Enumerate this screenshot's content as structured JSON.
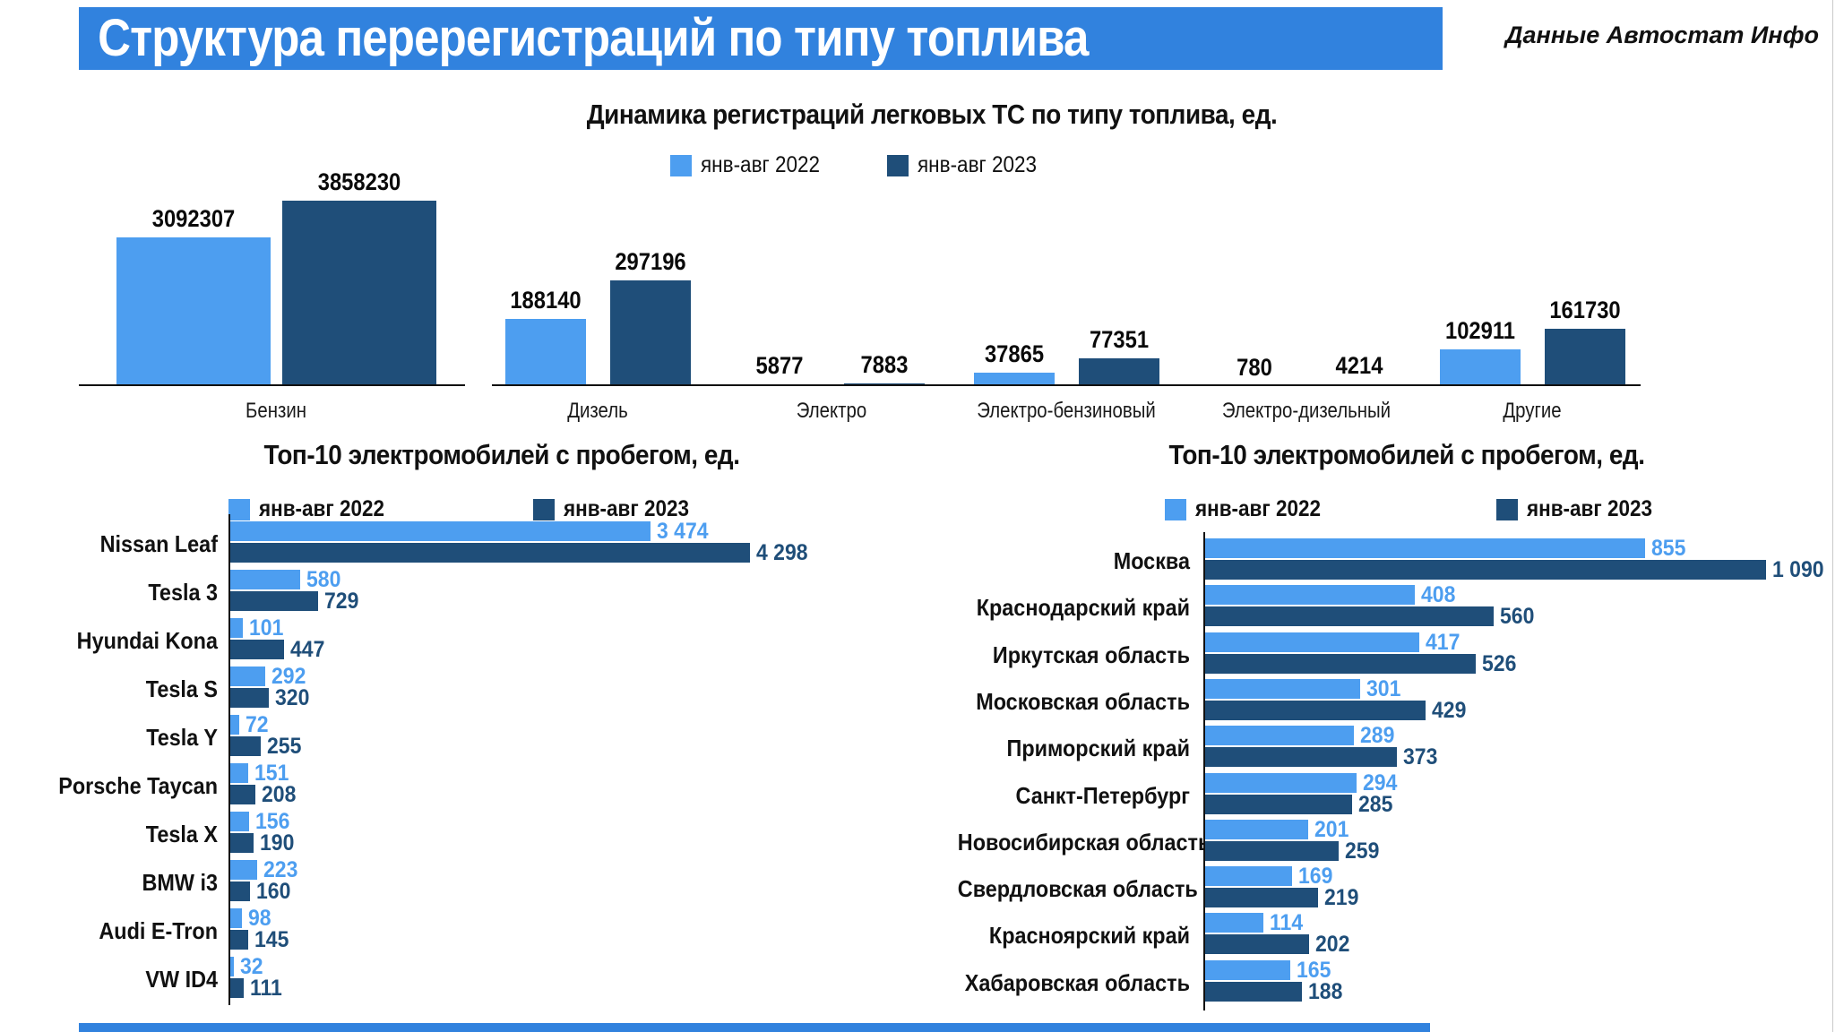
{
  "banner": {
    "title": "Структура перерегистраций по типу топлива",
    "bg_color": "#3182DE"
  },
  "source_note": "Данные Автостат Инфо",
  "colors": {
    "series_2022": "#4D9EF0",
    "series_2023": "#1F4E79",
    "banner_blue": "#3182DE"
  },
  "legend": {
    "label_2022": "янв-авг 2022",
    "label_2023": "янв-авг 2023"
  },
  "chart_data": [
    {
      "type": "bar",
      "orientation": "vertical",
      "title": "Динамика регистраций легковых ТС по типу топлива, ед.",
      "legend_position": "top",
      "grid": false,
      "categories": [
        "Бензин",
        "Дизель",
        "Электро",
        "Электро-бензиновый",
        "Электро-дизельный",
        "Другие"
      ],
      "series": [
        {
          "name": "янв-авг 2022",
          "values": [
            3092307,
            188140,
            5877,
            37865,
            780,
            102911
          ]
        },
        {
          "name": "янв-авг 2023",
          "values": [
            3858230,
            297196,
            7883,
            77351,
            4214,
            161730
          ]
        }
      ],
      "axis_note": "two panels with independent linear scales: Бензин panel, and Дизель–Другие panel; values shown as data labels above bars"
    },
    {
      "type": "bar",
      "orientation": "horizontal",
      "title": "Топ-10 электромобилей с пробегом, ед.",
      "legend_position": "top",
      "grid": false,
      "categories": [
        "Nissan Leaf",
        "Tesla 3",
        "Hyundai Kona",
        "Tesla S",
        "Tesla Y",
        "Porsche Taycan",
        "Tesla X",
        "BMW i3",
        "Audi E-Tron",
        "VW ID4"
      ],
      "series": [
        {
          "name": "янв-авг 2022",
          "values": [
            3474,
            580,
            101,
            292,
            72,
            151,
            156,
            223,
            98,
            32
          ]
        },
        {
          "name": "янв-авг 2023",
          "values": [
            4298,
            729,
            447,
            320,
            255,
            208,
            190,
            160,
            145,
            111
          ]
        }
      ],
      "xlim": [
        0,
        4298
      ]
    },
    {
      "type": "bar",
      "orientation": "horizontal",
      "title": "Топ-10 электромобилей с пробегом, ед.",
      "legend_position": "top",
      "grid": false,
      "categories": [
        "Москва",
        "Краснодарский край",
        "Иркутская область",
        "Московская область",
        "Приморский край",
        "Санкт-Петербург",
        "Новосибирская область",
        "Свердловская область",
        "Красноярский край",
        "Хабаровская область"
      ],
      "series": [
        {
          "name": "янв-авг 2022",
          "values": [
            855,
            408,
            417,
            301,
            289,
            294,
            201,
            169,
            114,
            165
          ]
        },
        {
          "name": "янв-авг 2023",
          "values": [
            1090,
            560,
            526,
            429,
            373,
            285,
            259,
            219,
            202,
            188
          ]
        }
      ],
      "xlim": [
        0,
        1090
      ]
    }
  ]
}
